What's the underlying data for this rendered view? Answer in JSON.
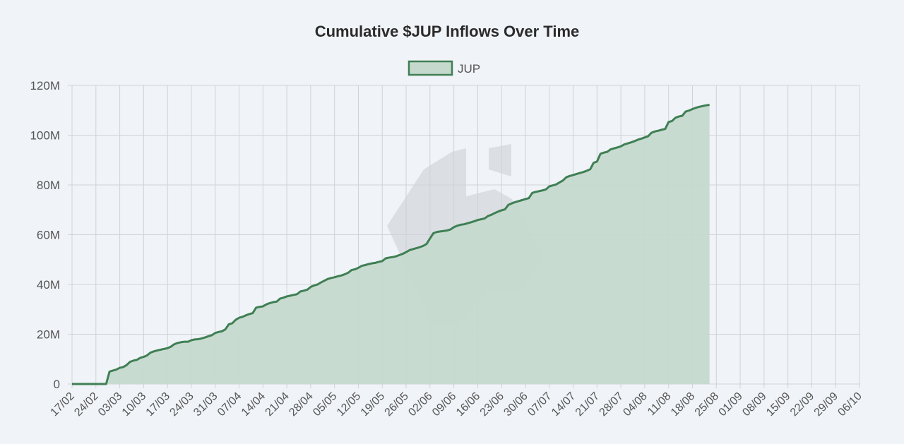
{
  "chart_data": {
    "type": "area",
    "title": "Cumulative $JUP Inflows Over Time",
    "xlabel": "",
    "ylabel": "",
    "legend": {
      "position": "top"
    },
    "grid": true,
    "colors": {
      "line": "#3f7f54",
      "fill": "#c5d9cd",
      "background": "#f0f3f7",
      "watermark": "#d4d7dc"
    },
    "x_ticks": [
      "17/02",
      "24/02",
      "03/03",
      "10/03",
      "17/03",
      "24/03",
      "31/03",
      "07/04",
      "14/04",
      "21/04",
      "28/04",
      "05/05",
      "12/05",
      "19/05",
      "26/05",
      "02/06",
      "09/06",
      "16/06",
      "23/06",
      "30/06",
      "07/07",
      "14/07",
      "21/07",
      "28/07",
      "04/08",
      "11/08",
      "18/08",
      "25/08",
      "01/09",
      "08/09",
      "15/09",
      "22/09",
      "29/09",
      "06/10"
    ],
    "y_ticks": [
      "0",
      "20M",
      "40M",
      "60M",
      "80M",
      "100M",
      "120M"
    ],
    "ylim": [
      0,
      120000000
    ],
    "series": [
      {
        "name": "JUP",
        "points": [
          [
            0,
            0
          ],
          [
            5,
            0
          ],
          [
            7,
            0
          ],
          [
            10,
            0
          ],
          [
            11,
            5000000
          ],
          [
            12,
            5400000
          ],
          [
            13,
            5800000
          ],
          [
            14,
            6500000
          ],
          [
            15,
            6800000
          ],
          [
            16,
            7600000
          ],
          [
            17,
            8900000
          ],
          [
            18,
            9400000
          ],
          [
            19,
            9700000
          ],
          [
            20,
            10500000
          ],
          [
            21,
            10900000
          ],
          [
            22,
            11500000
          ],
          [
            23,
            12600000
          ],
          [
            24,
            13100000
          ],
          [
            25,
            13500000
          ],
          [
            26,
            13800000
          ],
          [
            27,
            14100000
          ],
          [
            28,
            14400000
          ],
          [
            29,
            15000000
          ],
          [
            30,
            16000000
          ],
          [
            31,
            16500000
          ],
          [
            32,
            16800000
          ],
          [
            33,
            17000000
          ],
          [
            34,
            17000000
          ],
          [
            35,
            17600000
          ],
          [
            36,
            17900000
          ],
          [
            37,
            18000000
          ],
          [
            38,
            18300000
          ],
          [
            39,
            18700000
          ],
          [
            40,
            19200000
          ],
          [
            41,
            19600000
          ],
          [
            42,
            20500000
          ],
          [
            43,
            20900000
          ],
          [
            44,
            21200000
          ],
          [
            45,
            22000000
          ],
          [
            46,
            24000000
          ],
          [
            47,
            24400000
          ],
          [
            48,
            25800000
          ],
          [
            49,
            26600000
          ],
          [
            50,
            27000000
          ],
          [
            51,
            27600000
          ],
          [
            52,
            28100000
          ],
          [
            53,
            28500000
          ],
          [
            54,
            30700000
          ],
          [
            55,
            31000000
          ],
          [
            56,
            31200000
          ],
          [
            57,
            32000000
          ],
          [
            58,
            32500000
          ],
          [
            59,
            32900000
          ],
          [
            60,
            33100000
          ],
          [
            61,
            34300000
          ],
          [
            62,
            34700000
          ],
          [
            63,
            35200000
          ],
          [
            64,
            35500000
          ],
          [
            65,
            35800000
          ],
          [
            66,
            36100000
          ],
          [
            67,
            37200000
          ],
          [
            68,
            37500000
          ],
          [
            69,
            37900000
          ],
          [
            70,
            39000000
          ],
          [
            71,
            39600000
          ],
          [
            72,
            40000000
          ],
          [
            73,
            40800000
          ],
          [
            74,
            41500000
          ],
          [
            75,
            42200000
          ],
          [
            76,
            42600000
          ],
          [
            77,
            42900000
          ],
          [
            78,
            43300000
          ],
          [
            79,
            43600000
          ],
          [
            80,
            44100000
          ],
          [
            81,
            44700000
          ],
          [
            82,
            45800000
          ],
          [
            83,
            46100000
          ],
          [
            84,
            46700000
          ],
          [
            85,
            47500000
          ],
          [
            86,
            47800000
          ],
          [
            87,
            48200000
          ],
          [
            88,
            48500000
          ],
          [
            89,
            48700000
          ],
          [
            90,
            49100000
          ],
          [
            91,
            49400000
          ],
          [
            92,
            50500000
          ],
          [
            93,
            50800000
          ],
          [
            94,
            51000000
          ],
          [
            95,
            51300000
          ],
          [
            96,
            51800000
          ],
          [
            97,
            52300000
          ],
          [
            98,
            53000000
          ],
          [
            99,
            53800000
          ],
          [
            100,
            54200000
          ],
          [
            101,
            54600000
          ],
          [
            102,
            55000000
          ],
          [
            103,
            55500000
          ],
          [
            104,
            56300000
          ],
          [
            105,
            58500000
          ],
          [
            106,
            60600000
          ],
          [
            107,
            61100000
          ],
          [
            108,
            61300000
          ],
          [
            109,
            61500000
          ],
          [
            110,
            61700000
          ],
          [
            111,
            62100000
          ],
          [
            112,
            63000000
          ],
          [
            113,
            63600000
          ],
          [
            114,
            64000000
          ],
          [
            115,
            64200000
          ],
          [
            116,
            64600000
          ],
          [
            117,
            65000000
          ],
          [
            118,
            65400000
          ],
          [
            119,
            65900000
          ],
          [
            120,
            66200000
          ],
          [
            121,
            66500000
          ],
          [
            122,
            67500000
          ],
          [
            123,
            68000000
          ],
          [
            124,
            68700000
          ],
          [
            125,
            69300000
          ],
          [
            126,
            69800000
          ],
          [
            127,
            70200000
          ],
          [
            128,
            72000000
          ],
          [
            129,
            72600000
          ],
          [
            130,
            73100000
          ],
          [
            131,
            73500000
          ],
          [
            132,
            73900000
          ],
          [
            133,
            74300000
          ],
          [
            134,
            74700000
          ],
          [
            135,
            76800000
          ],
          [
            136,
            77200000
          ],
          [
            137,
            77500000
          ],
          [
            138,
            77800000
          ],
          [
            139,
            78200000
          ],
          [
            140,
            79400000
          ],
          [
            141,
            79800000
          ],
          [
            142,
            80200000
          ],
          [
            143,
            81000000
          ],
          [
            144,
            81800000
          ],
          [
            145,
            83100000
          ],
          [
            146,
            83600000
          ],
          [
            147,
            84000000
          ],
          [
            148,
            84400000
          ],
          [
            149,
            84800000
          ],
          [
            150,
            85200000
          ],
          [
            151,
            85700000
          ],
          [
            152,
            86300000
          ],
          [
            153,
            88900000
          ],
          [
            154,
            89400000
          ],
          [
            155,
            92500000
          ],
          [
            156,
            93000000
          ],
          [
            157,
            93300000
          ],
          [
            158,
            94300000
          ],
          [
            159,
            94700000
          ],
          [
            160,
            95100000
          ],
          [
            161,
            95500000
          ],
          [
            162,
            96300000
          ],
          [
            163,
            96700000
          ],
          [
            164,
            97100000
          ],
          [
            165,
            97600000
          ],
          [
            166,
            98200000
          ],
          [
            167,
            98600000
          ],
          [
            168,
            99100000
          ],
          [
            169,
            99600000
          ],
          [
            170,
            101000000
          ],
          [
            171,
            101500000
          ],
          [
            172,
            101800000
          ],
          [
            173,
            102200000
          ],
          [
            174,
            102500000
          ],
          [
            175,
            105300000
          ],
          [
            176,
            105700000
          ],
          [
            177,
            107000000
          ],
          [
            178,
            107500000
          ],
          [
            179,
            107800000
          ],
          [
            180,
            109500000
          ],
          [
            181,
            109900000
          ],
          [
            182,
            110500000
          ],
          [
            183,
            111000000
          ],
          [
            184,
            111400000
          ],
          [
            185,
            111700000
          ],
          [
            186,
            112000000
          ],
          [
            187,
            112200000
          ]
        ]
      }
    ]
  }
}
